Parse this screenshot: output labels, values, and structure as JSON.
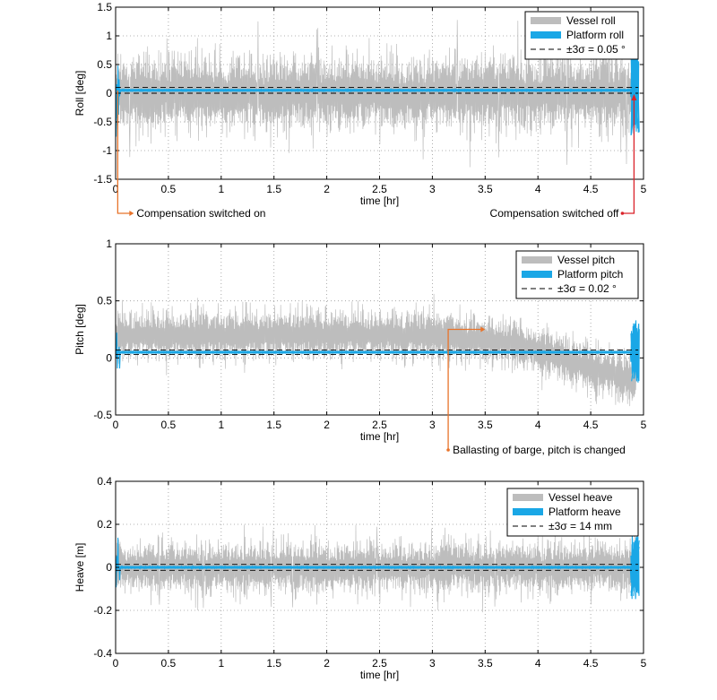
{
  "chart_data": [
    {
      "type": "line",
      "xlabel": "time [hr]",
      "ylabel": "Roll [deg]",
      "xlim": [
        0,
        5
      ],
      "ylim": [
        -1.5,
        1.5
      ],
      "xticks": [
        "0",
        "0.5",
        "1",
        "1.5",
        "2",
        "2.5",
        "3",
        "3.5",
        "4",
        "4.5",
        "5"
      ],
      "yticks": [
        "-1.5",
        "-1",
        "-0.5",
        "0",
        "0.5",
        "1",
        "1.5"
      ],
      "grid": true,
      "legend_position": "top-right",
      "series": [
        {
          "name": "Vessel roll",
          "color": "#bdbdbd",
          "mean": 0.0,
          "amplitude": 0.55,
          "peak": 1.3
        },
        {
          "name": "Platform  roll",
          "color": "#1aa7e6",
          "mean": 0.05,
          "amplitude": 0.017,
          "edge_amplitude": 0.85
        },
        {
          "name": "±3σ = 0.05 °",
          "color": "#000000",
          "style": "dashed",
          "values": [
            0.1,
            0.0
          ]
        }
      ],
      "annotations": [
        {
          "text": "Compensation switched on",
          "x": 0.02
        },
        {
          "text": "Compensation switched off",
          "x": 4.91
        }
      ]
    },
    {
      "type": "line",
      "xlabel": "time [hr]",
      "ylabel": "Pitch [deg]",
      "xlim": [
        0,
        5
      ],
      "ylim": [
        -0.5,
        1
      ],
      "xticks": [
        "0",
        "0.5",
        "1",
        "1.5",
        "2",
        "2.5",
        "3",
        "3.5",
        "4",
        "4.5",
        "5"
      ],
      "yticks": [
        "-0.5",
        "0",
        "0.5",
        "1"
      ],
      "grid": true,
      "legend_position": "top-right",
      "series": [
        {
          "name": "Vessel pitch",
          "color": "#bdbdbd",
          "mean_profile": [
            [
              0,
              0.2
            ],
            [
              3.0,
              0.2
            ],
            [
              3.8,
              0.12
            ],
            [
              4.4,
              -0.05
            ],
            [
              4.9,
              -0.2
            ]
          ],
          "amplitude": 0.18
        },
        {
          "name": "Platform  pitch",
          "color": "#1aa7e6",
          "mean": 0.05,
          "amplitude": 0.008,
          "edge_amplitude": 0.28
        },
        {
          "name": "±3σ = 0.02 °",
          "color": "#000000",
          "style": "dashed",
          "values": [
            0.07,
            0.03
          ]
        }
      ],
      "annotations": [
        {
          "text": "Ballasting of barge, pitch is changed",
          "x": 3.15,
          "target_x": 3.5,
          "target_y": 0.25
        }
      ]
    },
    {
      "type": "line",
      "xlabel": "time [hr]",
      "ylabel": "Heave [m]",
      "xlim": [
        0,
        5
      ],
      "ylim": [
        -0.4,
        0.4
      ],
      "xticks": [
        "0",
        "0.5",
        "1",
        "1.5",
        "2",
        "2.5",
        "3",
        "3.5",
        "4",
        "4.5",
        "5"
      ],
      "yticks": [
        "-0.4",
        "-0.2",
        "0",
        "0.2",
        "0.4"
      ],
      "grid": true,
      "legend_position": "top-right",
      "series": [
        {
          "name": "Vessel heave",
          "color": "#bdbdbd",
          "mean": 0.0,
          "amplitude": 0.1,
          "peak": 0.2
        },
        {
          "name": "Platform  heave",
          "color": "#1aa7e6",
          "mean": 0.0,
          "amplitude": 0.005,
          "edge_amplitude": 0.15
        },
        {
          "name": "±3σ = 14 mm",
          "color": "#000000",
          "style": "dashed",
          "values": [
            0.014,
            -0.014
          ]
        }
      ],
      "annotations": []
    }
  ],
  "annotation_color": "#e8732a",
  "annotation_color_off": "#d9232a"
}
